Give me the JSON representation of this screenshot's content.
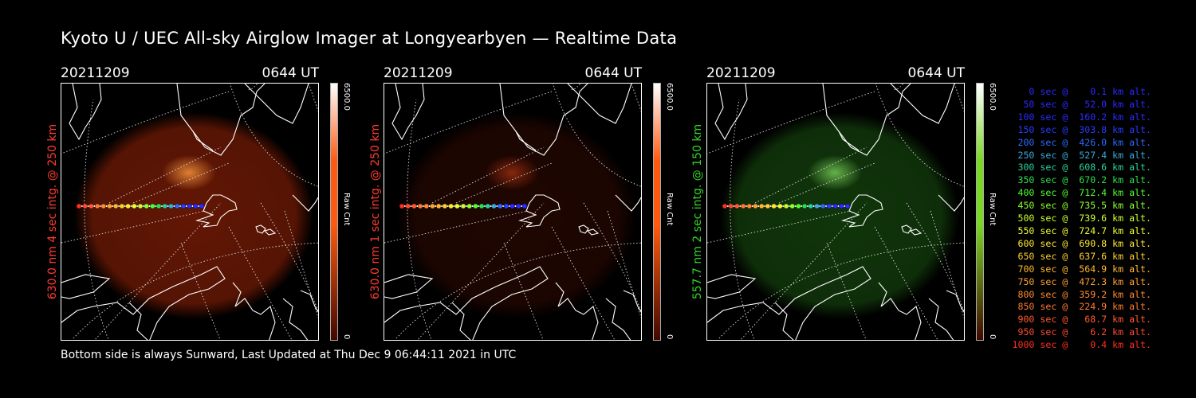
{
  "title": "Kyoto U / UEC All-sky Airglow Imager at Longyearbyen — Realtime Data",
  "footer": "Bottom side is always Sunward, Last Updated at Thu Dec  9 06:44:11 2021 in UTC",
  "panels": [
    {
      "date": "20211209",
      "time": "0644 UT",
      "side_label": "630.0 nm 4 sec intg. @ 250 km",
      "side_color": "#ff3b2f",
      "glow_color": "#b52a08",
      "glow_opacity": 0.55,
      "aurora_color": "#ff9a40",
      "cbar_max": "6500.0",
      "cbar_min": "0",
      "cbar_unit": "Raw Cnt",
      "cbar_color": "#ff5a10"
    },
    {
      "date": "20211209",
      "time": "0644 UT",
      "side_label": "630.0 nm 1 sec intg. @ 250 km",
      "side_color": "#ff3b2f",
      "glow_color": "#5a1204",
      "glow_opacity": 0.35,
      "aurora_color": "#a03010",
      "cbar_max": "6500.0",
      "cbar_min": "0",
      "cbar_unit": "Raw Cnt",
      "cbar_color": "#ff5a10"
    },
    {
      "date": "20211209",
      "time": "0644 UT",
      "side_label": "557.7 nm 2 sec intg. @ 150 km",
      "side_color": "#34d629",
      "glow_color": "#1c5a12",
      "glow_opacity": 0.6,
      "aurora_color": "#7ad25a",
      "cbar_max": "6500.0",
      "cbar_min": "0",
      "cbar_unit": "Raw Cnt",
      "cbar_color": "#7ad820"
    }
  ],
  "legend": [
    {
      "text": "   0 sec @    0.1 km alt.",
      "color": "#2a2aff"
    },
    {
      "text": "  50 sec @   52.0 km alt.",
      "color": "#2a2aff"
    },
    {
      "text": " 100 sec @  160.2 km alt.",
      "color": "#2a2aff"
    },
    {
      "text": " 150 sec @  303.8 km alt.",
      "color": "#2a3aff"
    },
    {
      "text": " 200 sec @  426.0 km alt.",
      "color": "#2a6aff"
    },
    {
      "text": " 250 sec @  527.4 km alt.",
      "color": "#3aaad8"
    },
    {
      "text": " 300 sec @  608.6 km alt.",
      "color": "#2ad0a0"
    },
    {
      "text": " 350 sec @  670.2 km alt.",
      "color": "#2ae050"
    },
    {
      "text": " 400 sec @  712.4 km alt.",
      "color": "#50ff30"
    },
    {
      "text": " 450 sec @  735.5 km alt.",
      "color": "#90ff30"
    },
    {
      "text": " 500 sec @  739.6 km alt.",
      "color": "#c8ff30"
    },
    {
      "text": " 550 sec @  724.7 km alt.",
      "color": "#f0ff30"
    },
    {
      "text": " 600 sec @  690.8 km alt.",
      "color": "#ffe830"
    },
    {
      "text": " 650 sec @  637.6 km alt.",
      "color": "#ffd030"
    },
    {
      "text": " 700 sec @  564.9 km alt.",
      "color": "#ffb830"
    },
    {
      "text": " 750 sec @  472.3 km alt.",
      "color": "#ffa030"
    },
    {
      "text": " 800 sec @  359.2 km alt.",
      "color": "#ff8a30"
    },
    {
      "text": " 850 sec @  224.9 km alt.",
      "color": "#ff7a30"
    },
    {
      "text": " 900 sec @   68.7 km alt.",
      "color": "#ff5a30"
    },
    {
      "text": " 950 sec @    6.2 km alt.",
      "color": "#ff4a30"
    },
    {
      "text": "1000 sec @    0.4 km alt.",
      "color": "#ff3020"
    }
  ]
}
